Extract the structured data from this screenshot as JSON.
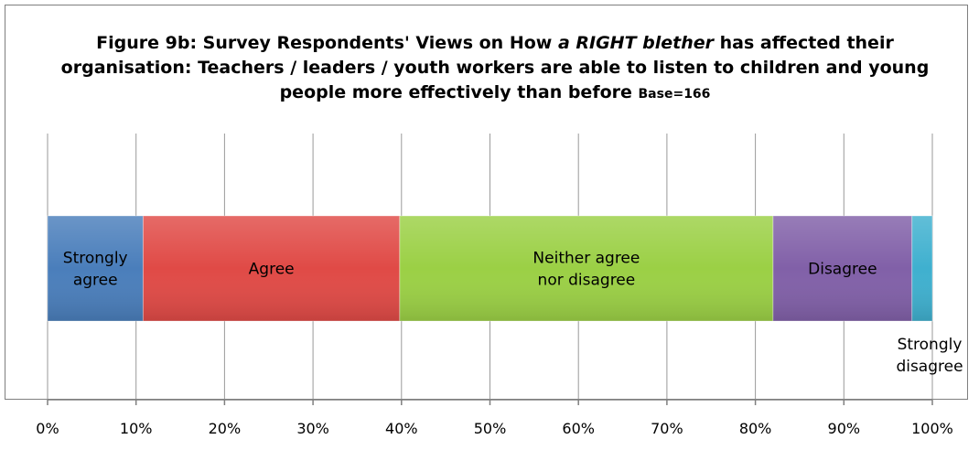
{
  "chart_data": {
    "type": "bar",
    "orientation": "horizontal-stacked",
    "title_parts": [
      {
        "text": "Figure 9b: Survey Respondents' Views on How ",
        "style": "normal"
      },
      {
        "text": "a RIGHT blether",
        "style": "italic"
      },
      {
        "text": " has affected their organisation: Teachers / leaders / youth workers are able to listen to children and young people more effectively than before ",
        "style": "normal"
      },
      {
        "text": "Base=166",
        "style": "small"
      }
    ],
    "xlim": [
      0,
      100
    ],
    "x_ticks": [
      "0%",
      "10%",
      "20%",
      "30%",
      "40%",
      "50%",
      "60%",
      "70%",
      "80%",
      "90%",
      "100%"
    ],
    "grid": true,
    "series": [
      {
        "label_lines": [
          "Strongly",
          "agree"
        ],
        "value": 10.8,
        "color": "#4a7ebb"
      },
      {
        "label_lines": [
          "Agree"
        ],
        "value": 29.0,
        "color": "#e04a46"
      },
      {
        "label_lines": [
          "Neither agree",
          "nor disagree"
        ],
        "value": 42.2,
        "color": "#9bd045"
      },
      {
        "label_lines": [
          "Disagree"
        ],
        "value": 15.7,
        "color": "#8160a8"
      },
      {
        "label_lines": [
          "Strongly",
          "disagree"
        ],
        "value": 2.3,
        "color": "#3fb0cf"
      }
    ]
  }
}
